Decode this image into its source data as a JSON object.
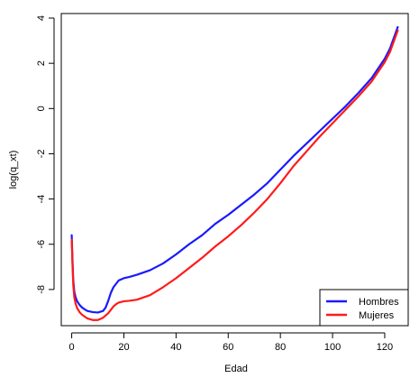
{
  "chart_data": {
    "type": "line",
    "title": "",
    "xlabel": "Edad",
    "ylabel": "log(q_xt)",
    "xlim": [
      -4,
      129
    ],
    "ylim": [
      -9.6,
      4.2
    ],
    "xticks": [
      0,
      20,
      40,
      60,
      80,
      100,
      120
    ],
    "yticks": [
      -8,
      -6,
      -4,
      -2,
      0,
      2,
      4
    ],
    "grid": false,
    "legend_position": "bottom-right",
    "colors": {
      "Hombres": "#1a1aff",
      "Mujeres": "#ff1a1a"
    },
    "series": [
      {
        "name": "Hombres",
        "x": [
          0,
          0.3,
          0.6,
          1,
          1.5,
          2,
          3,
          4,
          5,
          6,
          8,
          10,
          12,
          13,
          14,
          15,
          16,
          17,
          18,
          20,
          22,
          25,
          30,
          35,
          40,
          45,
          50,
          55,
          60,
          65,
          70,
          75,
          80,
          85,
          90,
          95,
          100,
          105,
          110,
          115,
          120,
          122,
          125
        ],
        "values": [
          -5.6,
          -6.7,
          -7.6,
          -8.1,
          -8.35,
          -8.5,
          -8.68,
          -8.8,
          -8.88,
          -8.95,
          -9.0,
          -9.02,
          -8.95,
          -8.8,
          -8.5,
          -8.15,
          -7.9,
          -7.75,
          -7.6,
          -7.5,
          -7.45,
          -7.35,
          -7.15,
          -6.85,
          -6.45,
          -6.0,
          -5.6,
          -5.1,
          -4.7,
          -4.25,
          -3.8,
          -3.3,
          -2.7,
          -2.1,
          -1.55,
          -1.0,
          -0.45,
          0.1,
          0.7,
          1.35,
          2.2,
          2.65,
          3.6
        ]
      },
      {
        "name": "Mujeres",
        "x": [
          0,
          0.3,
          0.6,
          1,
          1.5,
          2,
          3,
          4,
          5,
          6,
          8,
          10,
          12,
          14,
          15,
          16,
          17,
          18,
          20,
          22,
          25,
          30,
          35,
          40,
          45,
          50,
          55,
          60,
          65,
          70,
          75,
          80,
          85,
          90,
          95,
          100,
          105,
          110,
          115,
          120,
          122,
          125
        ],
        "values": [
          -5.8,
          -6.9,
          -7.8,
          -8.35,
          -8.62,
          -8.8,
          -9.0,
          -9.12,
          -9.2,
          -9.28,
          -9.35,
          -9.35,
          -9.25,
          -9.05,
          -8.9,
          -8.75,
          -8.65,
          -8.58,
          -8.52,
          -8.5,
          -8.45,
          -8.25,
          -7.9,
          -7.5,
          -7.05,
          -6.6,
          -6.1,
          -5.65,
          -5.15,
          -4.6,
          -4.0,
          -3.3,
          -2.55,
          -1.9,
          -1.25,
          -0.65,
          -0.05,
          0.55,
          1.2,
          2.05,
          2.5,
          3.45
        ]
      }
    ]
  }
}
